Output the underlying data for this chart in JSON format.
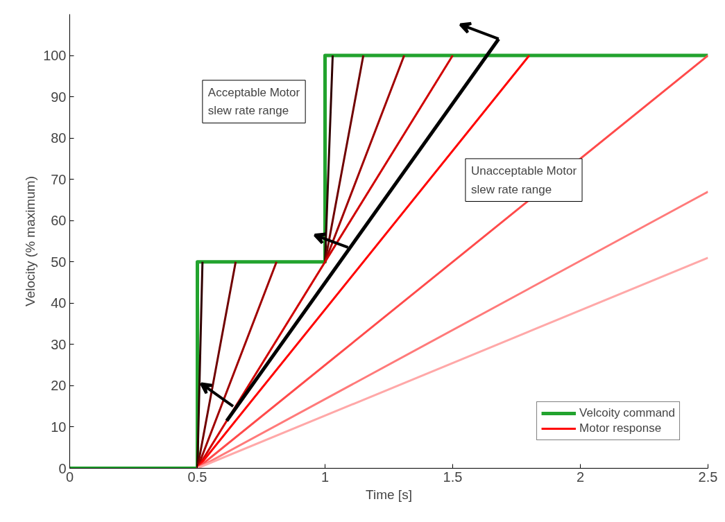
{
  "chart_data": {
    "type": "line",
    "xlabel": "Time [s]",
    "ylabel": "Velocity (% maximum)",
    "xlim": [
      0,
      2.5
    ],
    "ylim": [
      0,
      110
    ],
    "xticks": [
      0,
      0.5,
      1,
      1.5,
      2,
      2.5
    ],
    "yticks": [
      0,
      10,
      20,
      30,
      40,
      50,
      60,
      70,
      80,
      90,
      100
    ],
    "grid": false,
    "legend": "bottom right",
    "marker": "none",
    "line_style": "solid",
    "annotations": [
      "Acceptable Motor\nslew rate range",
      "Unacceptable Motor\nslew rate range"
    ],
    "series": [
      {
        "name": "Velcoity command",
        "color": "#22a32e",
        "x": [
          0,
          0.5,
          0.5,
          1,
          1,
          2.5
        ],
        "values": [
          0,
          0,
          50,
          50,
          100,
          100
        ]
      },
      {
        "color": "#300000",
        "x": [
          0.5,
          0.52,
          0.75,
          1,
          1.03
        ],
        "values": [
          0,
          50,
          null,
          50,
          100
        ]
      },
      {
        "color": "#700000",
        "x": [
          0.5,
          0.65,
          0.75,
          1,
          1.15
        ],
        "values": [
          0,
          50,
          null,
          50,
          100
        ]
      },
      {
        "color": "#a00000",
        "x": [
          0.5,
          0.81,
          0.9,
          1,
          1.31
        ],
        "values": [
          0,
          50,
          null,
          50,
          100
        ]
      },
      {
        "color": "#d00000",
        "x": [
          0.5,
          1.5
        ],
        "values": [
          0,
          100
        ]
      },
      {
        "name": "Motor response",
        "color": "#ff0000",
        "x": [
          0.5,
          1.8
        ],
        "values": [
          0,
          100
        ]
      },
      {
        "color": "#ff4a4a",
        "x": [
          0.5,
          2.5
        ],
        "values": [
          0,
          100
        ]
      },
      {
        "color": "#ff7a7a",
        "x": [
          0.5,
          2.5
        ],
        "values": [
          0,
          67
        ]
      },
      {
        "color": "#ffa8a8",
        "x": [
          0.5,
          2.5
        ],
        "values": [
          0,
          51
        ]
      },
      {
        "color": "#000000",
        "x": [
          0.615,
          1.68
        ],
        "values": [
          11.5,
          104
        ]
      }
    ]
  }
}
